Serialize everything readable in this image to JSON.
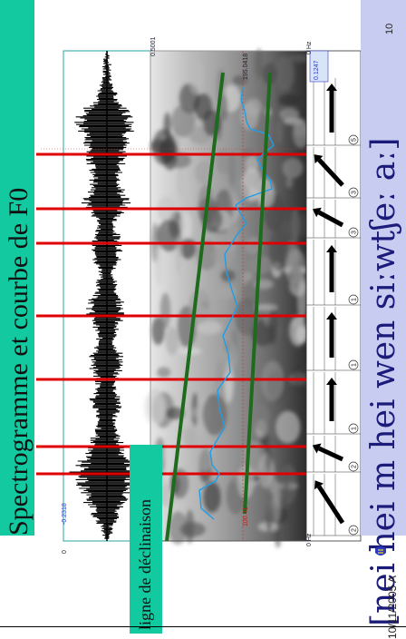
{
  "slide": {
    "page_number": "10",
    "title": "Spectrogramme et courbe de F0",
    "declination_label": "ligne de déclinaison",
    "ipa_transcription": "[nei hei m hei wen siːwtʃeː aː]",
    "date": "10/11/2005 A",
    "colors": {
      "title_band": "#13c9a0",
      "ipa_band": "#c8ccf0",
      "boundary_lines": "#e00000",
      "declination_lines": "#1e6b1e",
      "f0_curve": "#1e9ee8"
    }
  },
  "axes": {
    "waveform_zero": "0",
    "waveform_min": "-0.2318",
    "waveform_max": "0.5001",
    "spectro_zero": "0 Hz",
    "spectro_mid": "100.41",
    "spectro_top": "195.0418",
    "spectro_zero_top": "0 Hz",
    "time_end": "0.1247"
  },
  "tone_digits": [
    "5",
    "3",
    "3",
    "1",
    "1",
    "1",
    "2",
    "2",
    "3"
  ],
  "icons": {
    "logo": "hkbu-logo-icon"
  }
}
